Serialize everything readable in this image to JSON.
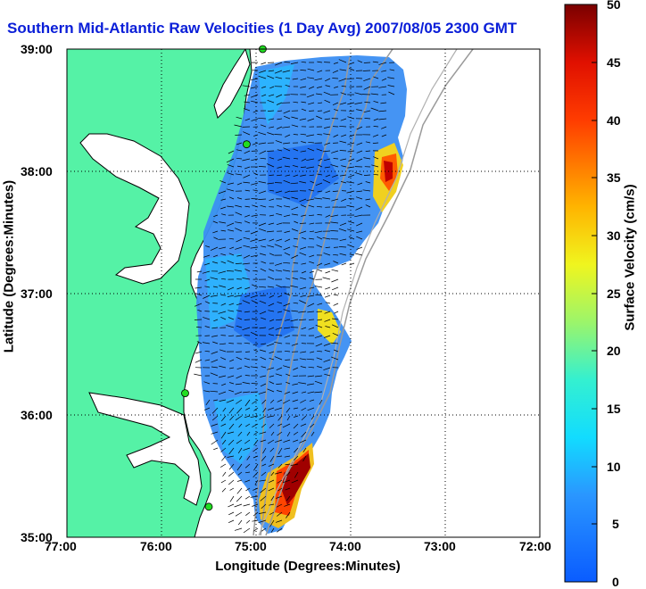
{
  "title": "Southern Mid-Atlantic Raw Velocities (1 Day Avg) 2007/08/05 2300 GMT",
  "xlabel": "Longitude (Degrees:Minutes)",
  "ylabel": "Latitude (Degrees:Minutes)",
  "colorbar_label": "Surface Velocity (cm/s)",
  "colors": {
    "land": "#55f2a6",
    "water": "#ffffff",
    "title": "#0a1ed8",
    "shelf": "#9a9a9a"
  },
  "x_ticks": [
    "77:00",
    "76:00",
    "75:00",
    "74:00",
    "73:00",
    "72:00"
  ],
  "y_ticks": [
    "39:00",
    "38:00",
    "37:00",
    "36:00",
    "35:00"
  ],
  "colorbar_ticks": [
    "50",
    "45",
    "40",
    "35",
    "30",
    "25",
    "20",
    "15",
    "10",
    "5",
    "0"
  ],
  "chart_data": {
    "type": "heatmap",
    "x": [
      -77,
      -76,
      -75,
      -74,
      -73,
      -72
    ],
    "y": [
      39,
      38,
      37,
      36,
      35
    ],
    "xlim": [
      -77,
      -72
    ],
    "ylim": [
      35,
      39
    ],
    "clim": [
      0,
      50
    ],
    "grid": true,
    "colormap": "jet",
    "stations": [
      {
        "lon": -74.93,
        "lat": 39.0
      },
      {
        "lon": -75.1,
        "lat": 38.22
      },
      {
        "lon": -75.75,
        "lat": 36.18
      },
      {
        "lon": -75.5,
        "lat": 35.25
      }
    ]
  }
}
